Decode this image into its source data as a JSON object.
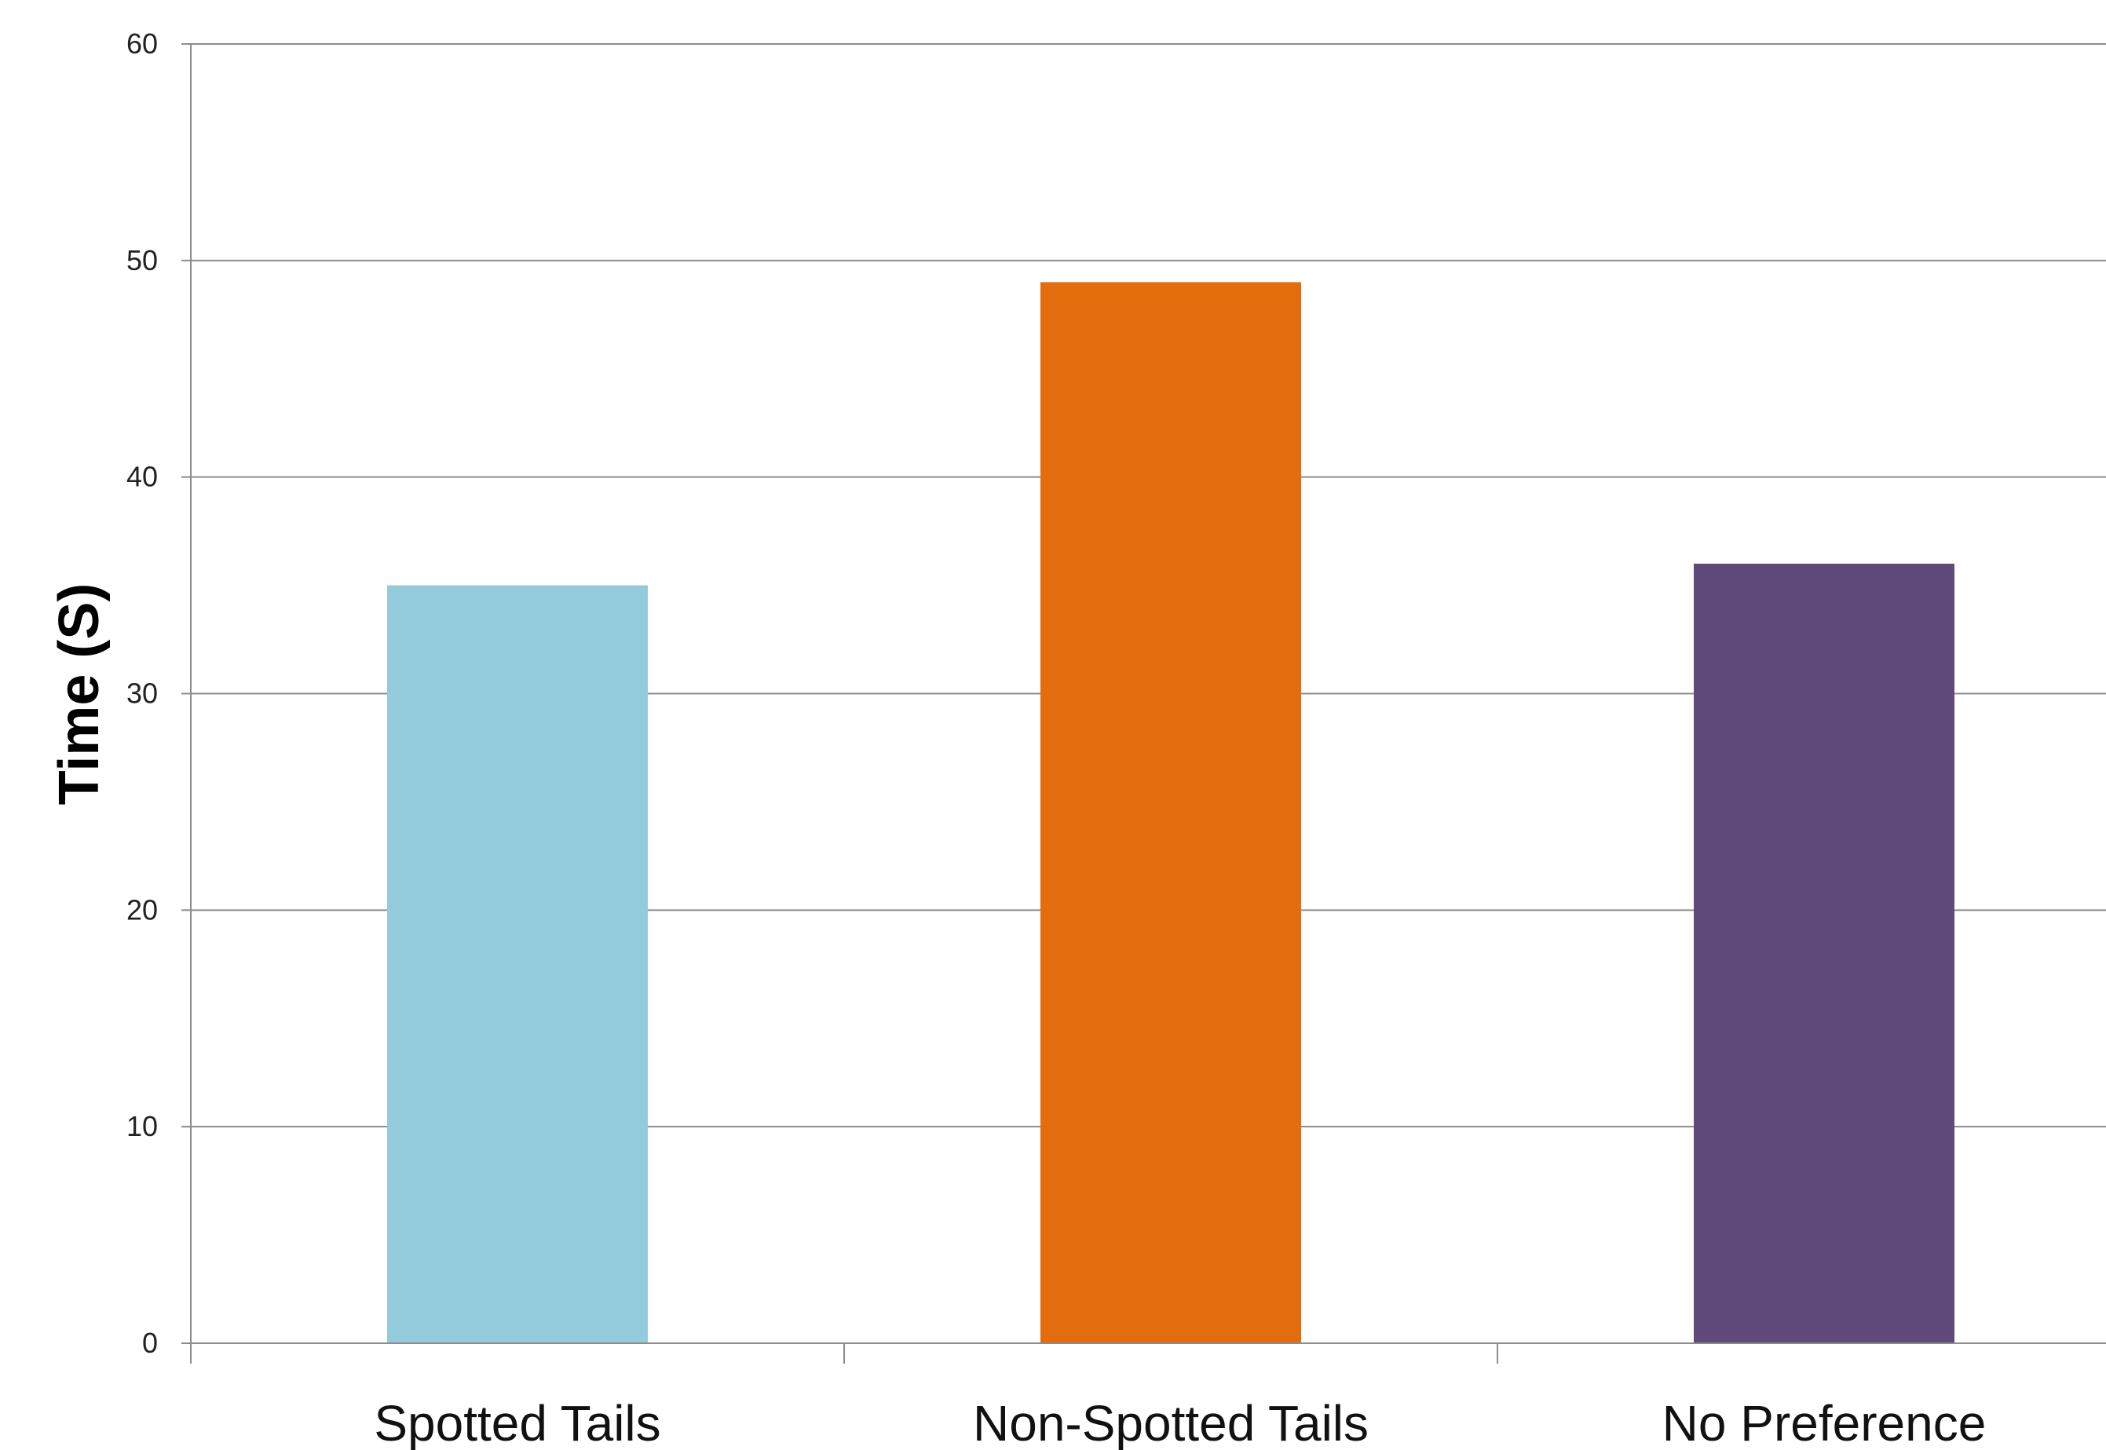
{
  "chart_data": {
    "type": "bar",
    "categories": [
      "Spotted Tails",
      "Non-Spotted Tails",
      "No Preference"
    ],
    "values": [
      35,
      49,
      36
    ],
    "colors": [
      "#94cbdc",
      "#e36c0c",
      "#604a7b"
    ],
    "title": "",
    "xlabel": "",
    "ylabel": "Time (S)",
    "ylim": [
      0,
      60
    ],
    "yticks": [
      0,
      10,
      20,
      30,
      40,
      50,
      60
    ],
    "grid": true,
    "legend": "none"
  }
}
